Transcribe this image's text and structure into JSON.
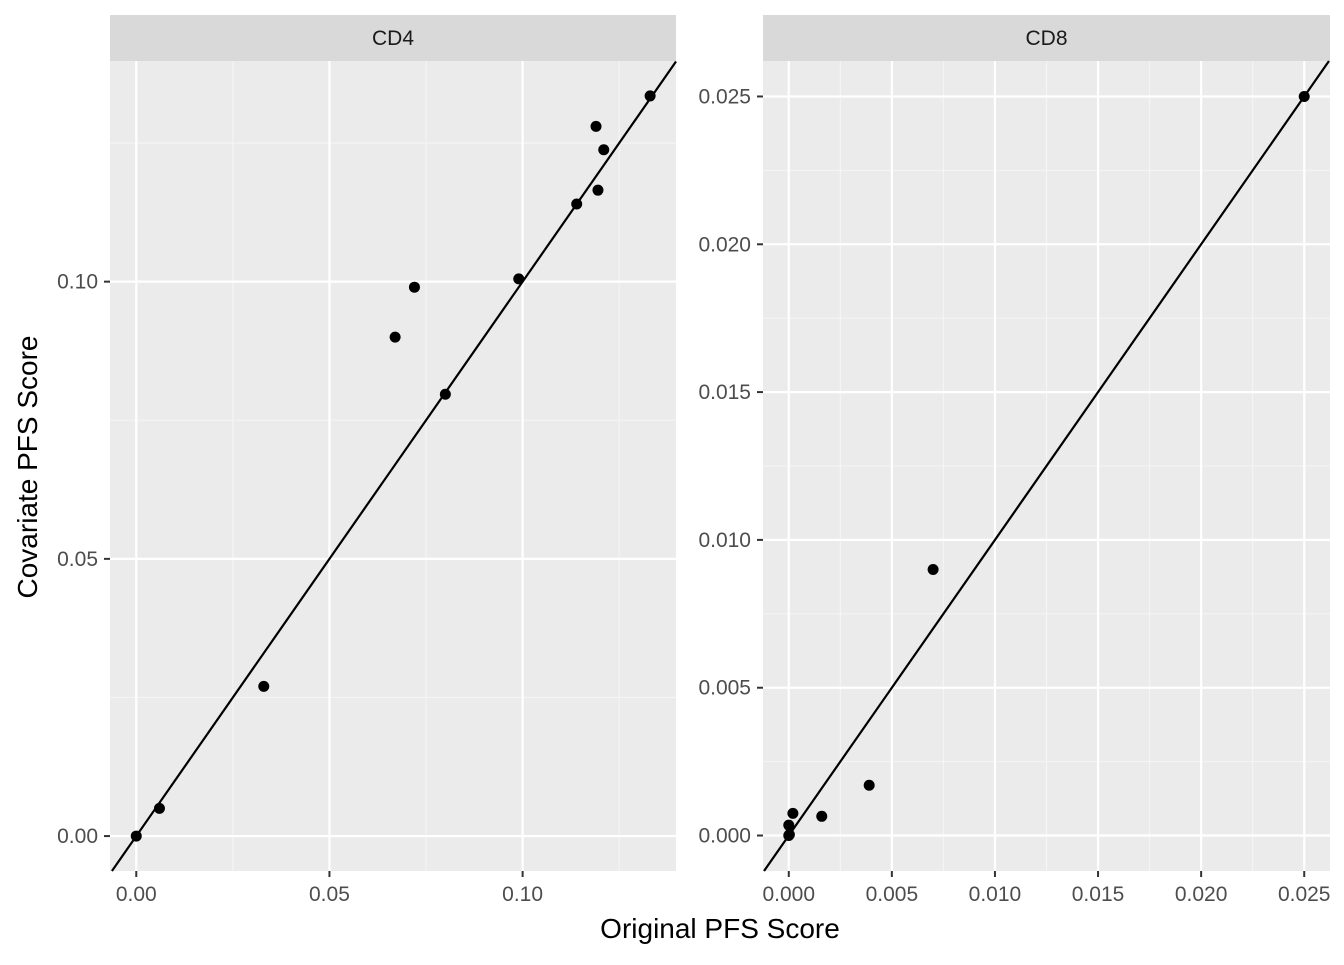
{
  "chart_data": {
    "type": "scatter",
    "xlabel": "Original PFS Score",
    "ylabel": "Covariate PFS Score",
    "reference_line": "y = x",
    "grid": true,
    "colors": {
      "panel_background": "#ebebeb",
      "strip_background": "#d9d9d9",
      "grid_major": "#ffffff",
      "grid_minor": "#f5f5f5",
      "points": "#000000",
      "line": "#000000",
      "tick_label": "#4d4d4d",
      "axis_title": "#000000"
    },
    "panels": [
      {
        "strip_label": "CD4",
        "xlim": [
          -0.0068,
          0.1397
        ],
        "ylim": [
          -0.0063,
          0.1398
        ],
        "x_ticks": [
          0.0,
          0.05,
          0.1
        ],
        "x_tick_labels": [
          "0.00",
          "0.05",
          "0.10"
        ],
        "y_ticks": [
          0.0,
          0.05,
          0.1
        ],
        "y_tick_labels": [
          "0.00",
          "0.05",
          "0.10"
        ],
        "x_minor": [
          0.025,
          0.075,
          0.125
        ],
        "y_minor": [
          0.025,
          0.075,
          0.125
        ],
        "points": [
          {
            "x": 0.0,
            "y": 0.0
          },
          {
            "x": 0.006,
            "y": 0.005
          },
          {
            "x": 0.033,
            "y": 0.027
          },
          {
            "x": 0.067,
            "y": 0.09
          },
          {
            "x": 0.072,
            "y": 0.099
          },
          {
            "x": 0.08,
            "y": 0.0797
          },
          {
            "x": 0.099,
            "y": 0.1005
          },
          {
            "x": 0.114,
            "y": 0.114
          },
          {
            "x": 0.119,
            "y": 0.128
          },
          {
            "x": 0.1195,
            "y": 0.1165
          },
          {
            "x": 0.121,
            "y": 0.1238
          },
          {
            "x": 0.133,
            "y": 0.1335
          }
        ]
      },
      {
        "strip_label": "CD8",
        "xlim": [
          -0.00125,
          0.02625
        ],
        "ylim": [
          -0.0012,
          0.0262
        ],
        "x_ticks": [
          0.0,
          0.005,
          0.01,
          0.015,
          0.02,
          0.025
        ],
        "x_tick_labels": [
          "0.000",
          "0.005",
          "0.010",
          "0.015",
          "0.020",
          "0.025"
        ],
        "y_ticks": [
          0.0,
          0.005,
          0.01,
          0.015,
          0.02,
          0.025
        ],
        "y_tick_labels": [
          "0.000",
          "0.005",
          "0.010",
          "0.015",
          "0.020",
          "0.025"
        ],
        "x_minor": [
          0.0025,
          0.0075,
          0.0125,
          0.0175,
          0.0225
        ],
        "y_minor": [
          0.0025,
          0.0075,
          0.0125,
          0.0175,
          0.0225
        ],
        "points": [
          {
            "x": 0.0,
            "y": 0.0
          },
          {
            "x": 3e-05,
            "y": 3e-05
          },
          {
            "x": 0.0,
            "y": 0.00035
          },
          {
            "x": 0.0002,
            "y": 0.00075
          },
          {
            "x": 0.0016,
            "y": 0.00065
          },
          {
            "x": 0.0039,
            "y": 0.0017
          },
          {
            "x": 0.007,
            "y": 0.009
          },
          {
            "x": 0.025,
            "y": 0.025
          }
        ]
      }
    ]
  }
}
